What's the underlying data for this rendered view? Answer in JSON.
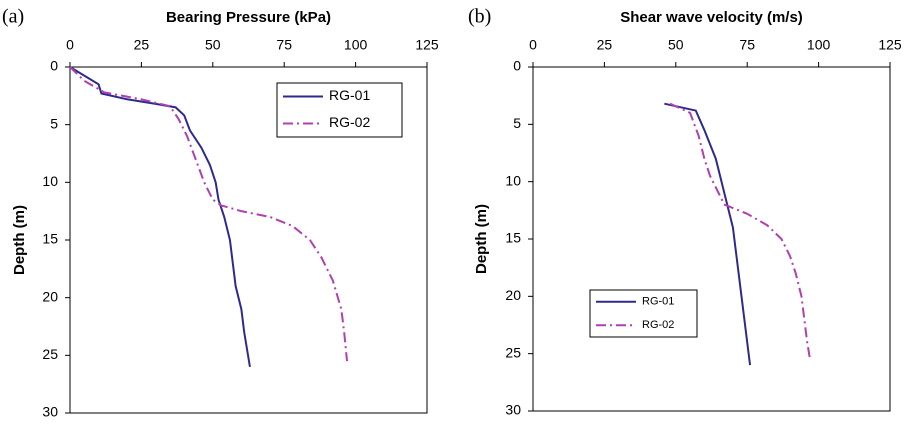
{
  "chart_data": [
    {
      "type": "line",
      "label": "(a)",
      "title": "Bearing Pressure (kPa)",
      "ylabel": "Depth (m)",
      "xlim": [
        0,
        125
      ],
      "xticks": [
        0,
        25,
        50,
        75,
        100,
        125
      ],
      "ylim": [
        0,
        30
      ],
      "yticks": [
        0,
        5,
        10,
        15,
        20,
        25,
        30
      ],
      "y_inverted": true,
      "legend": "upper right",
      "series": [
        {
          "name": "RG-01",
          "color": "#2e2a8c",
          "dash": "solid",
          "x": [
            0,
            10,
            11,
            20,
            30,
            37,
            40,
            42,
            46,
            49,
            51,
            52,
            54,
            56,
            57,
            58,
            60,
            61,
            63
          ],
          "values": [
            0,
            1.5,
            2.3,
            2.8,
            3.2,
            3.5,
            4.2,
            5.5,
            7,
            8.5,
            10,
            11.5,
            13,
            15,
            17,
            19,
            21,
            23,
            26
          ]
        },
        {
          "name": "RG-02",
          "color": "#b03fb0",
          "dash": "dashdot",
          "x": [
            0,
            5,
            12,
            25,
            35,
            38,
            41,
            44,
            47,
            50,
            53,
            60,
            70,
            78,
            84,
            88,
            92,
            95,
            96,
            97
          ],
          "values": [
            0,
            1.2,
            2.2,
            2.8,
            3.4,
            4.5,
            6,
            8,
            10,
            11.5,
            12,
            12.5,
            13,
            13.8,
            15,
            16.5,
            18.5,
            21,
            23,
            25.5
          ]
        }
      ]
    },
    {
      "type": "line",
      "label": "(b)",
      "title": "Shear wave velocity (m/s)",
      "ylabel": "Depth (m)",
      "xlim": [
        0,
        125
      ],
      "xticks": [
        0,
        25,
        50,
        75,
        100,
        125
      ],
      "ylim": [
        0,
        30
      ],
      "yticks": [
        0,
        5,
        10,
        15,
        20,
        25,
        30
      ],
      "y_inverted": true,
      "legend": "lower left",
      "series": [
        {
          "name": "RG-01",
          "color": "#2e2a8c",
          "dash": "solid",
          "x": [
            46,
            57,
            60,
            64,
            66,
            68,
            70,
            71,
            72,
            73,
            74,
            75,
            76
          ],
          "values": [
            3.2,
            3.8,
            5.5,
            8,
            10,
            12,
            14,
            16,
            18,
            20,
            22,
            24,
            26
          ]
        },
        {
          "name": "RG-02",
          "color": "#b03fb0",
          "dash": "dashdot",
          "x": [
            48,
            55,
            58,
            60,
            62,
            65,
            67,
            75,
            82,
            87,
            90,
            92,
            94,
            95,
            96,
            97
          ],
          "values": [
            3.2,
            4,
            6,
            8,
            9.5,
            11,
            12,
            12.8,
            13.8,
            15,
            16.5,
            18,
            20,
            22,
            24,
            25.5
          ]
        }
      ]
    }
  ]
}
